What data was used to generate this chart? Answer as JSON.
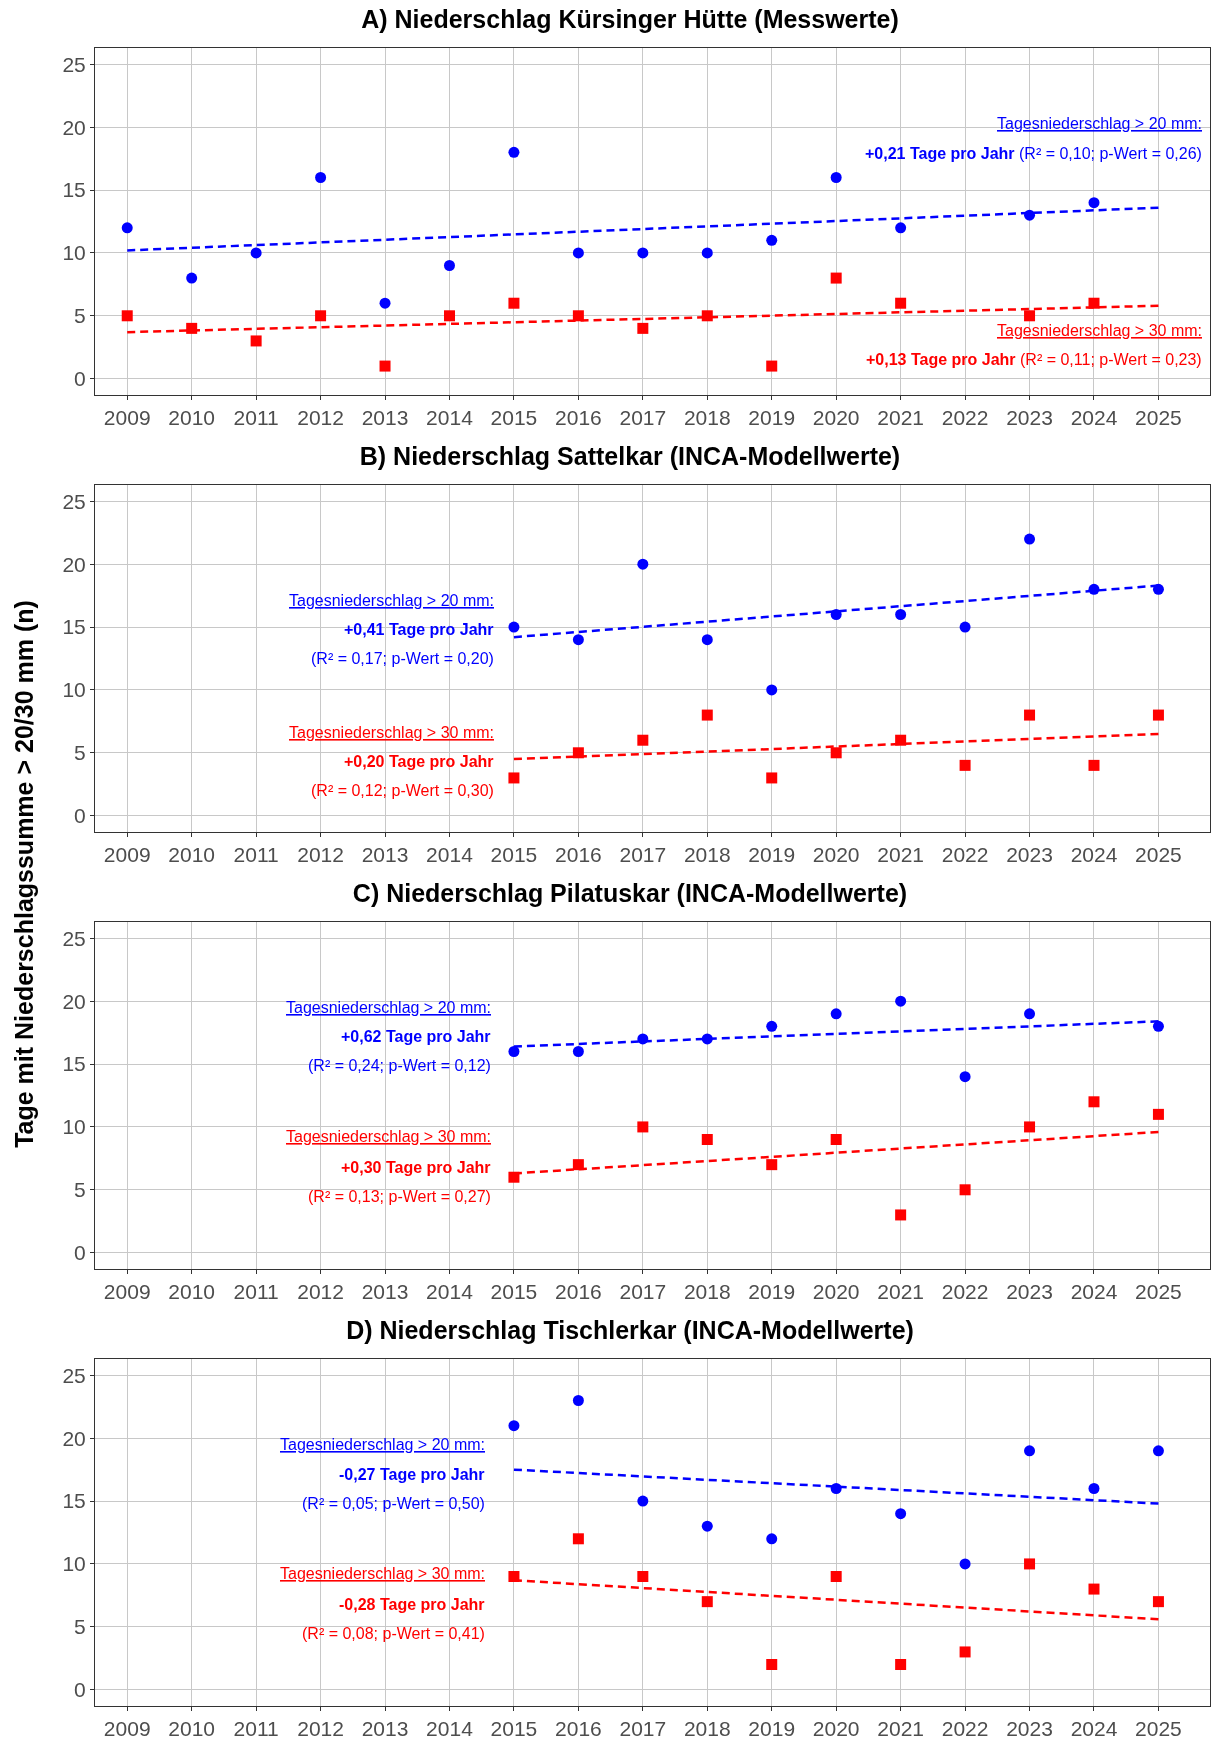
{
  "chart_data": [
    {
      "type": "scatter",
      "title": "A) Niederschlag Kürsinger Hütte (Messwerte)",
      "xlim": [
        2008.5,
        2025.8
      ],
      "xticks": [
        2009,
        2010,
        2011,
        2012,
        2013,
        2014,
        2015,
        2016,
        2017,
        2018,
        2019,
        2020,
        2021,
        2022,
        2023,
        2024,
        2025
      ],
      "ylim": [
        -1.3,
        26.3
      ],
      "yticks": [
        0,
        5,
        10,
        15,
        20,
        25
      ],
      "grid": true,
      "annotations": [
        "Tagesniederschlag > 20 mm:",
        "+0,21 Tage pro Jahr",
        "(R² = 0,10; p-Wert = 0,26)",
        "Tagesniederschlag > 30 mm:",
        "+0,13 Tage pro Jahr",
        "(R² = 0,11; p-Wert = 0,23)"
      ],
      "series": [
        {
          "type": "scatter",
          "color": "#0000ff",
          "marker": "circle",
          "x": [
            2009,
            2010,
            2011,
            2012,
            2013,
            2014,
            2015,
            2016,
            2017,
            2018,
            2019,
            2020,
            2021,
            2022,
            2023,
            2024
          ],
          "values": [
            12,
            8,
            10,
            16,
            6,
            9,
            18,
            10,
            10,
            10,
            11,
            16,
            12,
            null,
            13,
            14
          ]
        },
        {
          "type": "scatter",
          "color": "#ff0000",
          "marker": "square",
          "x": [
            2009,
            2010,
            2011,
            2012,
            2013,
            2014,
            2015,
            2016,
            2017,
            2018,
            2019,
            2020,
            2021,
            2022,
            2023,
            2024
          ],
          "values": [
            5,
            4,
            3,
            5,
            1,
            5,
            6,
            5,
            4,
            5,
            1,
            8,
            6,
            null,
            5,
            6
          ]
        },
        {
          "type": "line",
          "color": "#0000ff",
          "line_style": "dashed",
          "x": [
            2009,
            2025
          ],
          "values": [
            10.2,
            13.6
          ]
        },
        {
          "type": "line",
          "color": "#ff0000",
          "line_style": "dashed",
          "x": [
            2009,
            2025
          ],
          "values": [
            3.7,
            5.8
          ]
        }
      ]
    },
    {
      "type": "scatter",
      "title": "B) Niederschlag Sattelkar (INCA-Modellwerte)",
      "ylabel": "Tage mit Niederschlagssumme > 20/30 mm (n)",
      "xlim": [
        2008.5,
        2025.8
      ],
      "xticks": [
        2009,
        2010,
        2011,
        2012,
        2013,
        2014,
        2015,
        2016,
        2017,
        2018,
        2019,
        2020,
        2021,
        2022,
        2023,
        2024,
        2025
      ],
      "ylim": [
        -1.3,
        26.3
      ],
      "yticks": [
        0,
        5,
        10,
        15,
        20,
        25
      ],
      "grid": true,
      "annotations": [
        "Tagesniederschlag > 20 mm:",
        "+0,41 Tage pro Jahr",
        "(R² = 0,17; p-Wert = 0,20)",
        "Tagesniederschlag > 30 mm:",
        "+0,20 Tage pro Jahr",
        "(R² = 0,12; p-Wert = 0,30)"
      ],
      "series": [
        {
          "type": "scatter",
          "color": "#0000ff",
          "marker": "circle",
          "x": [
            2015,
            2016,
            2017,
            2018,
            2019,
            2020,
            2021,
            2022,
            2023,
            2024,
            2025
          ],
          "values": [
            15,
            14,
            20,
            14,
            10,
            16,
            16,
            15,
            22,
            18,
            18
          ]
        },
        {
          "type": "scatter",
          "color": "#ff0000",
          "marker": "square",
          "x": [
            2015,
            2016,
            2017,
            2018,
            2019,
            2020,
            2021,
            2022,
            2023,
            2024,
            2025
          ],
          "values": [
            3,
            5,
            6,
            8,
            3,
            5,
            6,
            4,
            8,
            4,
            8
          ]
        },
        {
          "type": "line",
          "color": "#0000ff",
          "line_style": "dashed",
          "x": [
            2015,
            2025
          ],
          "values": [
            14.2,
            18.3
          ]
        },
        {
          "type": "line",
          "color": "#ff0000",
          "line_style": "dashed",
          "x": [
            2015,
            2025
          ],
          "values": [
            4.5,
            6.5
          ]
        }
      ]
    },
    {
      "type": "scatter",
      "title": "C) Niederschlag Pilatuskar (INCA-Modellwerte)",
      "xlim": [
        2008.5,
        2025.8
      ],
      "xticks": [
        2009,
        2010,
        2011,
        2012,
        2013,
        2014,
        2015,
        2016,
        2017,
        2018,
        2019,
        2020,
        2021,
        2022,
        2023,
        2024,
        2025
      ],
      "ylim": [
        -1.3,
        26.3
      ],
      "yticks": [
        0,
        5,
        10,
        15,
        20,
        25
      ],
      "grid": true,
      "annotations": [
        "Tagesniederschlag > 20 mm:",
        "+0,62 Tage pro Jahr",
        "(R² = 0,24; p-Wert = 0,12)",
        "Tagesniederschlag > 30 mm:",
        "+0,30 Tage pro Jahr",
        "(R² = 0,13; p-Wert = 0,27)"
      ],
      "series": [
        {
          "type": "scatter",
          "color": "#0000ff",
          "marker": "circle",
          "x": [
            2015,
            2016,
            2017,
            2018,
            2019,
            2020,
            2021,
            2022,
            2023,
            2024,
            2025
          ],
          "values": [
            16,
            16,
            17,
            17,
            18,
            19,
            20,
            14,
            19,
            null,
            18
          ]
        },
        {
          "type": "scatter",
          "color": "#ff0000",
          "marker": "square",
          "x": [
            2015,
            2016,
            2017,
            2018,
            2019,
            2020,
            2021,
            2022,
            2023,
            2024,
            2025
          ],
          "values": [
            6,
            7,
            10,
            9,
            7,
            9,
            3,
            5,
            10,
            12,
            11
          ]
        },
        {
          "type": "line",
          "color": "#0000ff",
          "line_style": "dashed",
          "x": [
            2015,
            2025
          ],
          "values": [
            16.4,
            18.4
          ]
        },
        {
          "type": "line",
          "color": "#ff0000",
          "line_style": "dashed",
          "x": [
            2015,
            2025
          ],
          "values": [
            6.3,
            9.6
          ]
        }
      ]
    },
    {
      "type": "scatter",
      "title": "D) Niederschlag Tischlerkar (INCA-Modellwerte)",
      "xlim": [
        2008.5,
        2025.8
      ],
      "xticks": [
        2009,
        2010,
        2011,
        2012,
        2013,
        2014,
        2015,
        2016,
        2017,
        2018,
        2019,
        2020,
        2021,
        2022,
        2023,
        2024,
        2025
      ],
      "ylim": [
        -1.3,
        26.3
      ],
      "yticks": [
        0,
        5,
        10,
        15,
        20,
        25
      ],
      "grid": true,
      "annotations": [
        "Tagesniederschlag > 20 mm:",
        "-0,27 Tage pro Jahr",
        "(R² = 0,05; p-Wert = 0,50)",
        "Tagesniederschlag > 30 mm:",
        "-0,28 Tage pro Jahr",
        "(R² = 0,08; p-Wert = 0,41)"
      ],
      "series": [
        {
          "type": "scatter",
          "color": "#0000ff",
          "marker": "circle",
          "x": [
            2015,
            2016,
            2017,
            2018,
            2019,
            2020,
            2021,
            2022,
            2023,
            2024,
            2025
          ],
          "values": [
            21,
            23,
            15,
            13,
            12,
            16,
            14,
            10,
            19,
            16,
            19
          ]
        },
        {
          "type": "scatter",
          "color": "#ff0000",
          "marker": "square",
          "x": [
            2015,
            2016,
            2017,
            2018,
            2019,
            2020,
            2021,
            2022,
            2023,
            2024,
            2025
          ],
          "values": [
            9,
            12,
            9,
            7,
            2,
            9,
            2,
            3,
            10,
            8,
            7
          ]
        },
        {
          "type": "line",
          "color": "#0000ff",
          "line_style": "dashed",
          "x": [
            2015,
            2025
          ],
          "values": [
            17.5,
            14.8
          ]
        },
        {
          "type": "line",
          "color": "#ff0000",
          "line_style": "dashed",
          "x": [
            2015,
            2025
          ],
          "values": [
            8.7,
            5.6
          ]
        }
      ]
    }
  ]
}
